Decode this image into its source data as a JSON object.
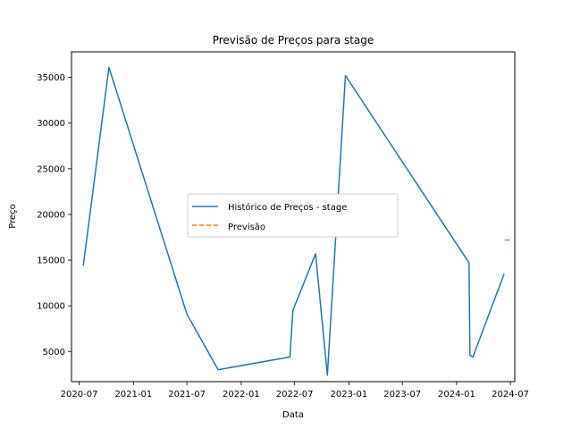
{
  "chart_data": {
    "type": "line",
    "title": "Previsão de Preços para stage",
    "xlabel": "Data",
    "ylabel": "Preço",
    "x_tick_labels": [
      "2020-07",
      "2021-01",
      "2021-07",
      "2022-01",
      "2022-07",
      "2023-01",
      "2023-07",
      "2024-01",
      "2024-07"
    ],
    "x_tick_dates": [
      "2020-07-01",
      "2021-01-01",
      "2021-07-01",
      "2022-01-01",
      "2022-07-01",
      "2023-01-01",
      "2023-07-01",
      "2024-01-01",
      "2024-07-01"
    ],
    "y_ticks": [
      5000,
      10000,
      15000,
      20000,
      25000,
      30000,
      35000
    ],
    "xlim": [
      "2020-06-05",
      "2024-07-16"
    ],
    "ylim": [
      1700,
      37800
    ],
    "grid": false,
    "legend_position": "center",
    "series": [
      {
        "name": "Histórico de Preços - stage",
        "color": "#1f77b4",
        "style": "solid",
        "points": [
          {
            "x": "2020-07-15",
            "y": 14400
          },
          {
            "x": "2020-10-10",
            "y": 36100
          },
          {
            "x": "2021-07-01",
            "y": 9100
          },
          {
            "x": "2021-10-15",
            "y": 3000
          },
          {
            "x": "2022-06-15",
            "y": 4400
          },
          {
            "x": "2022-06-25",
            "y": 9500
          },
          {
            "x": "2022-09-10",
            "y": 15700
          },
          {
            "x": "2022-10-20",
            "y": 2400
          },
          {
            "x": "2022-12-20",
            "y": 35200
          },
          {
            "x": "2024-02-12",
            "y": 14700
          },
          {
            "x": "2024-02-15",
            "y": 4600
          },
          {
            "x": "2024-02-25",
            "y": 4400
          },
          {
            "x": "2024-06-10",
            "y": 13500
          }
        ]
      },
      {
        "name": "Previsão",
        "color": "#ff7f0e",
        "style": "dashed",
        "points": [
          {
            "x": "2024-06-12",
            "y": 17200
          },
          {
            "x": "2024-07-05",
            "y": 17200
          }
        ]
      }
    ]
  }
}
